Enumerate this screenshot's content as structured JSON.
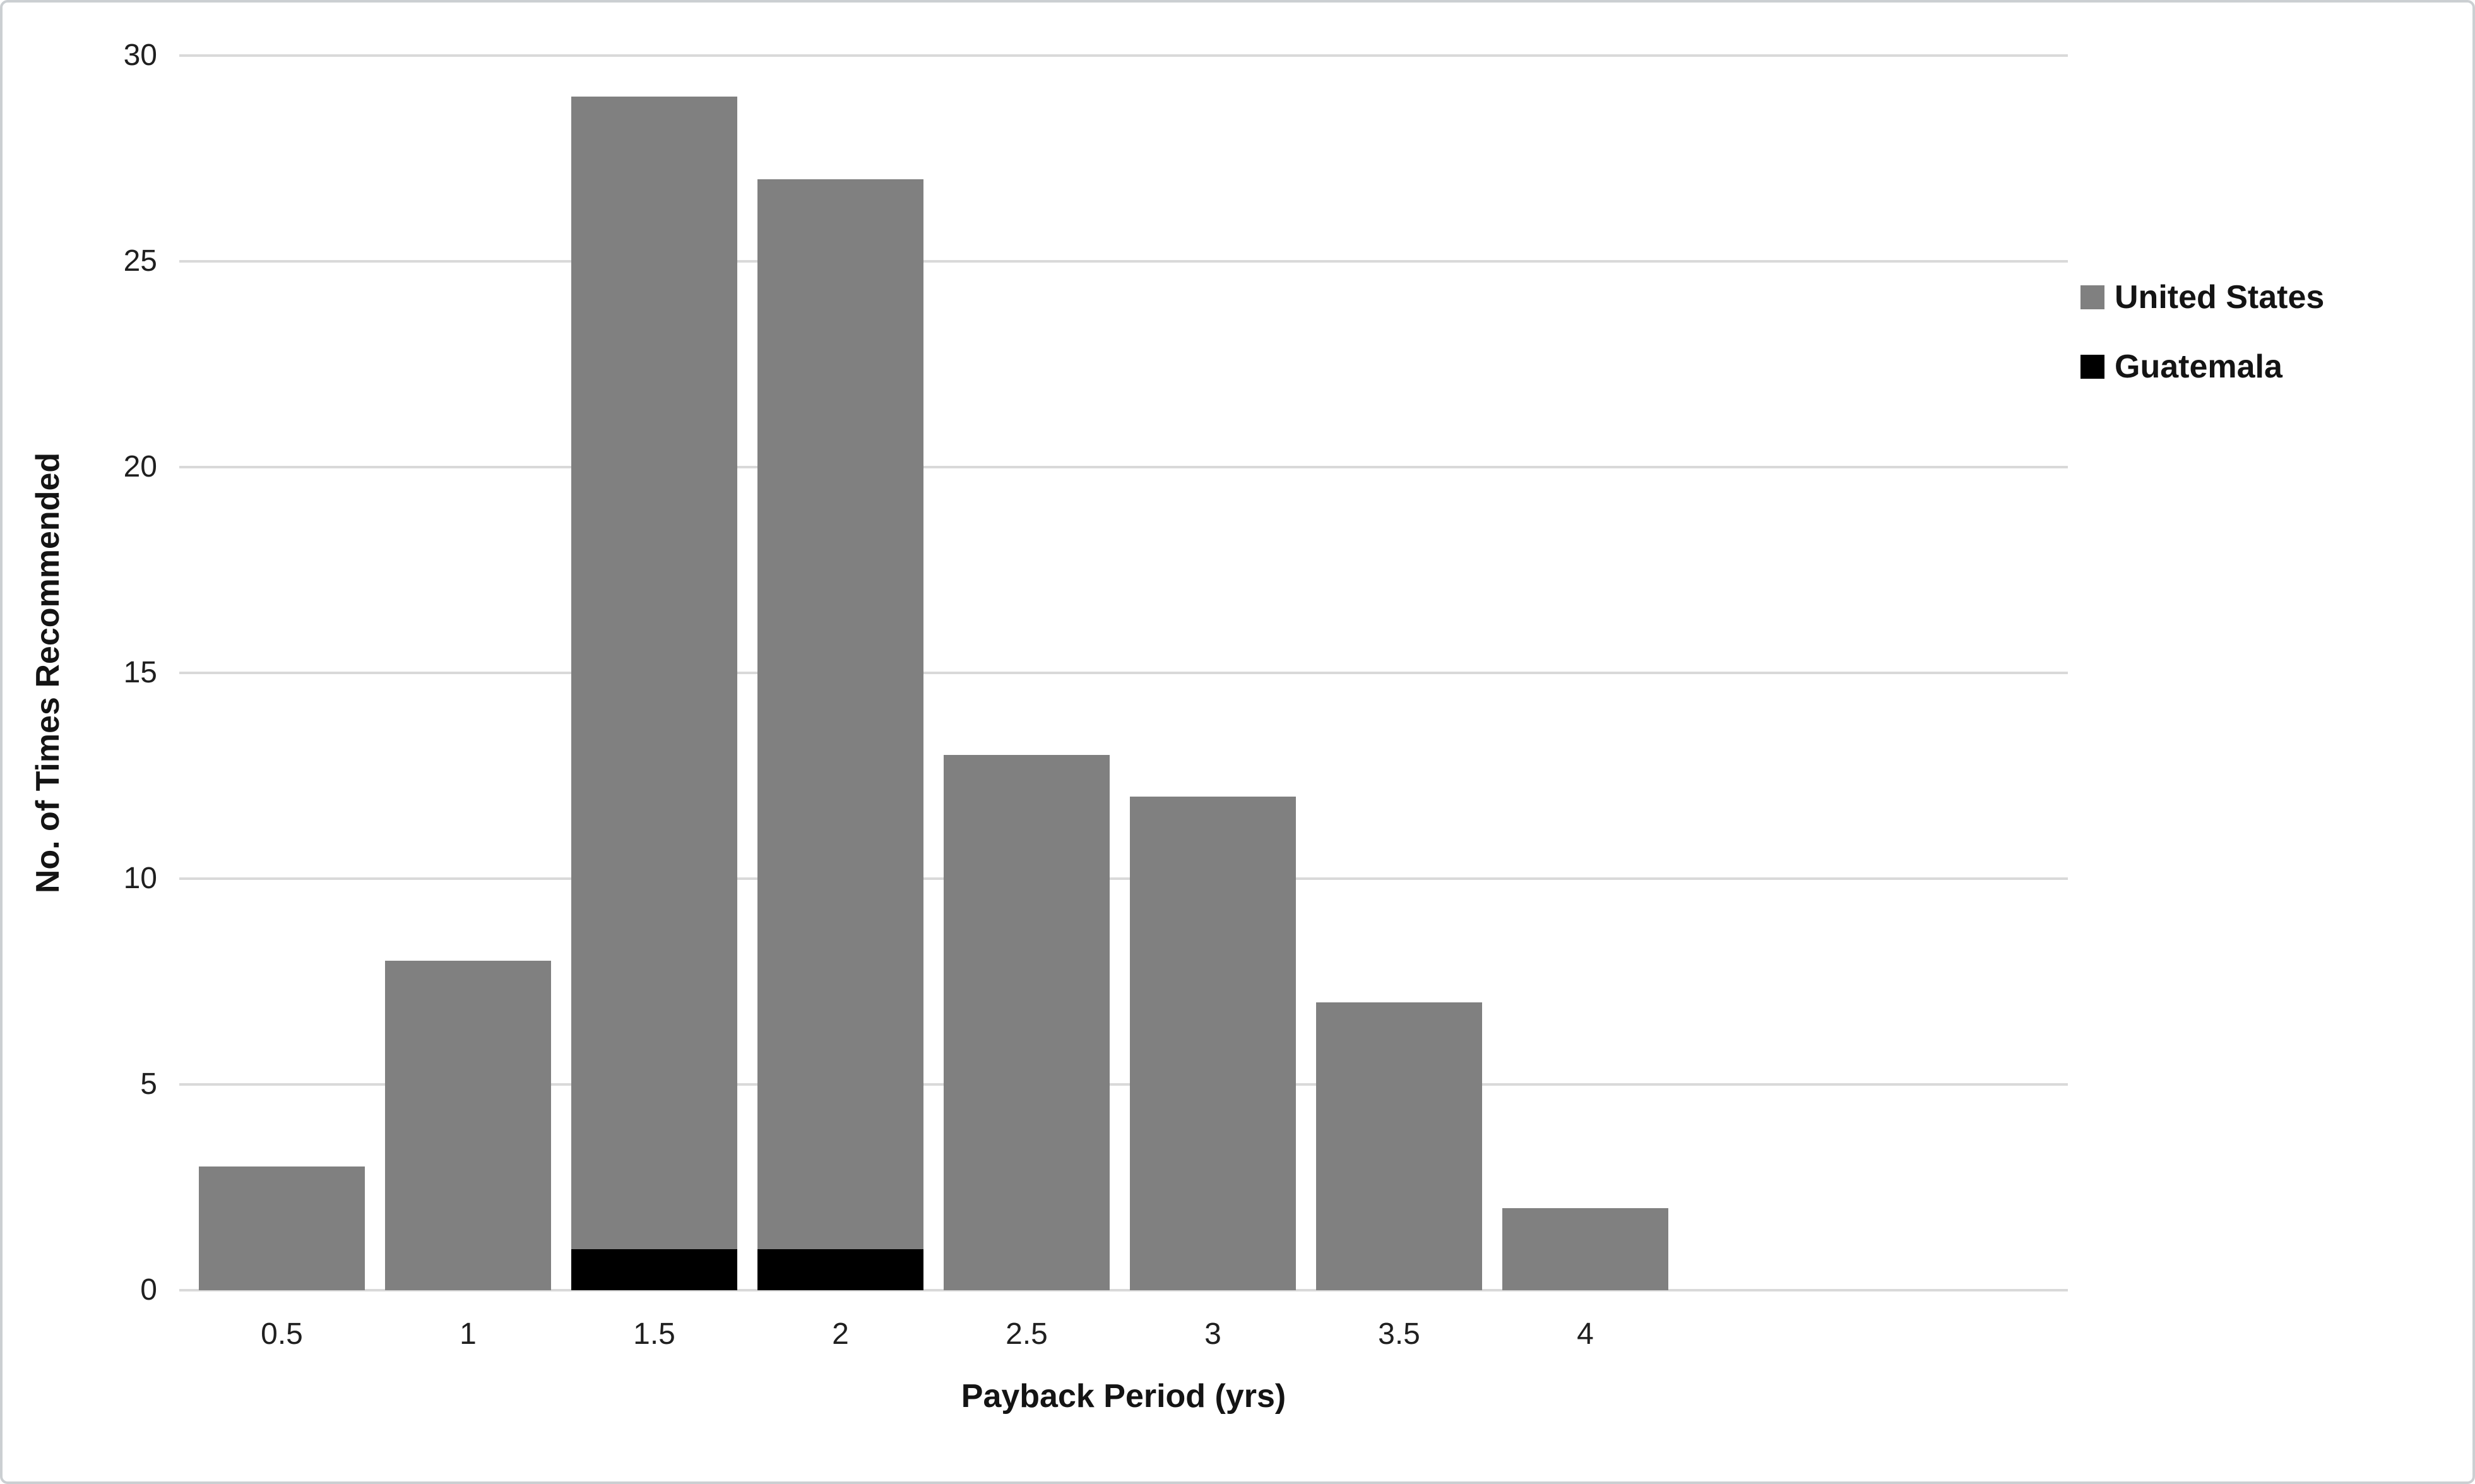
{
  "chart_data": {
    "type": "bar",
    "variant": "histogram-with-overlay-series",
    "title": "",
    "categories": [
      "0.5",
      "1",
      "1.5",
      "2",
      "2.5",
      "3",
      "3.5",
      "4"
    ],
    "series": [
      {
        "name": "United States",
        "color": "#808080",
        "values": [
          3,
          8,
          29,
          27,
          13,
          12,
          7,
          2
        ]
      },
      {
        "name": "Guatemala",
        "color": "#000000",
        "values": [
          0,
          0,
          1,
          1,
          0,
          0,
          0,
          0
        ]
      }
    ],
    "xlabel": "Payback Period (yrs)",
    "ylabel": "No. of Times Recommended",
    "ylim": [
      0,
      30
    ],
    "yticks": [
      0,
      5,
      10,
      15,
      20,
      25,
      30
    ],
    "grid": "horizontal",
    "legend_position": "right-upper"
  },
  "style": {
    "background": "#ffffff",
    "border_color": "#cbcfd2",
    "gridline_color": "#d9d9d9",
    "axis_line_color": "#d9d9d9",
    "tick_text_color": "#1f1f1f",
    "title_text_color": "#141414"
  }
}
